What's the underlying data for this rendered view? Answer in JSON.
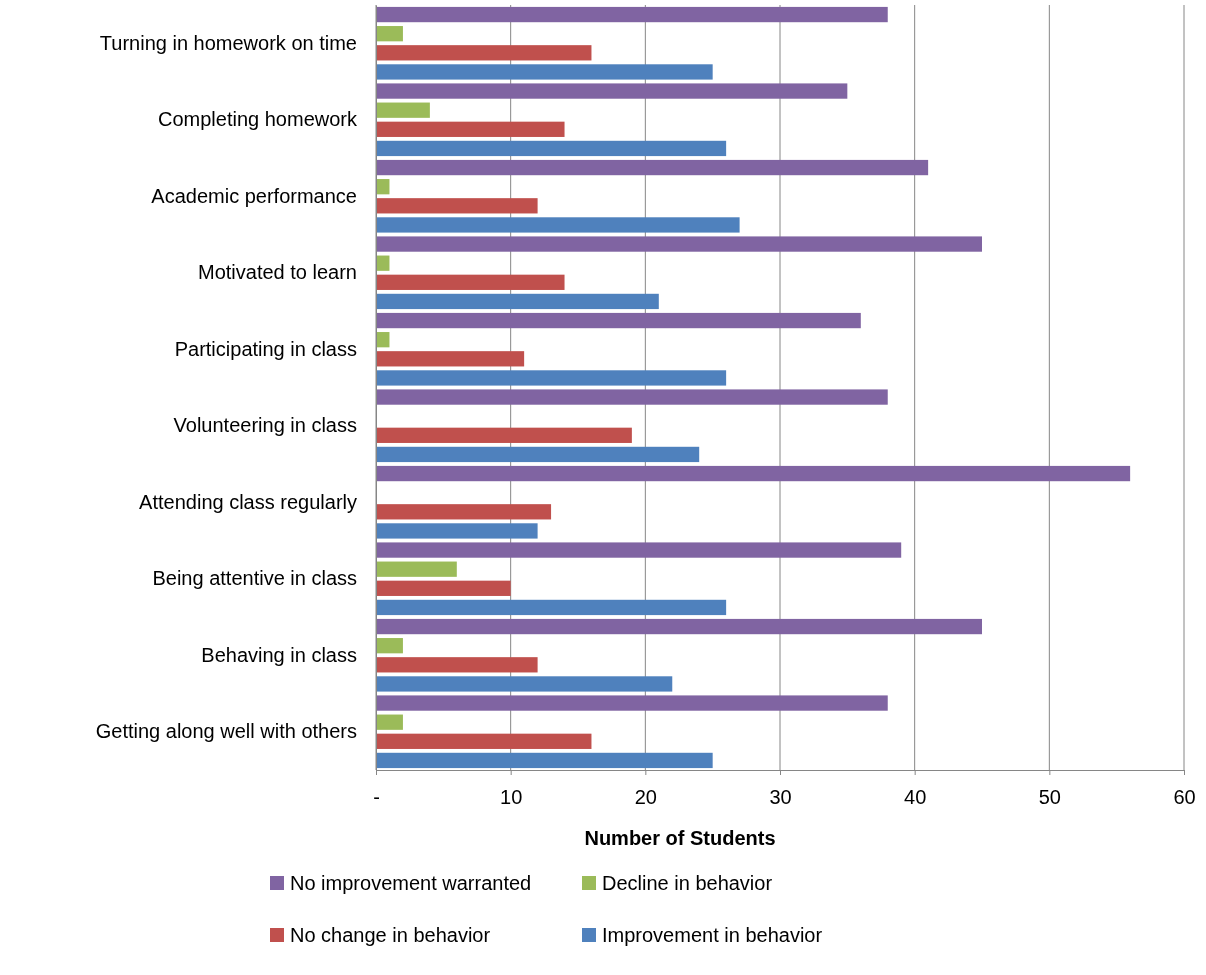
{
  "chart_data": {
    "type": "bar",
    "orientation": "horizontal",
    "xlabel": "Number of Students",
    "categories": [
      "Turning in homework on time",
      "Completing homework",
      "Academic performance",
      "Motivated to learn",
      "Participating in class",
      "Volunteering in class",
      "Attending class regularly",
      "Being attentive in class",
      "Behaving in class",
      "Getting along well with others"
    ],
    "series": [
      {
        "name": "No improvement warranted",
        "color": "#8064a2",
        "values": [
          38,
          35,
          41,
          45,
          36,
          38,
          56,
          39,
          45,
          38
        ]
      },
      {
        "name": "Decline in behavior",
        "color": "#9bbb59",
        "values": [
          2,
          4,
          1,
          1,
          1,
          0,
          0,
          6,
          2,
          2
        ]
      },
      {
        "name": "No change in behavior",
        "color": "#c0504d",
        "values": [
          16,
          14,
          12,
          14,
          11,
          19,
          13,
          10,
          12,
          16
        ]
      },
      {
        "name": "Improvement in behavior",
        "color": "#4f81bd",
        "values": [
          25,
          26,
          27,
          21,
          26,
          24,
          12,
          26,
          22,
          25
        ]
      }
    ],
    "xlim": [
      0,
      60
    ],
    "xticks": [
      {
        "value": 0,
        "label": "-"
      },
      10,
      20,
      30,
      40,
      50,
      60
    ],
    "grid": "x",
    "legend": "bottom"
  }
}
